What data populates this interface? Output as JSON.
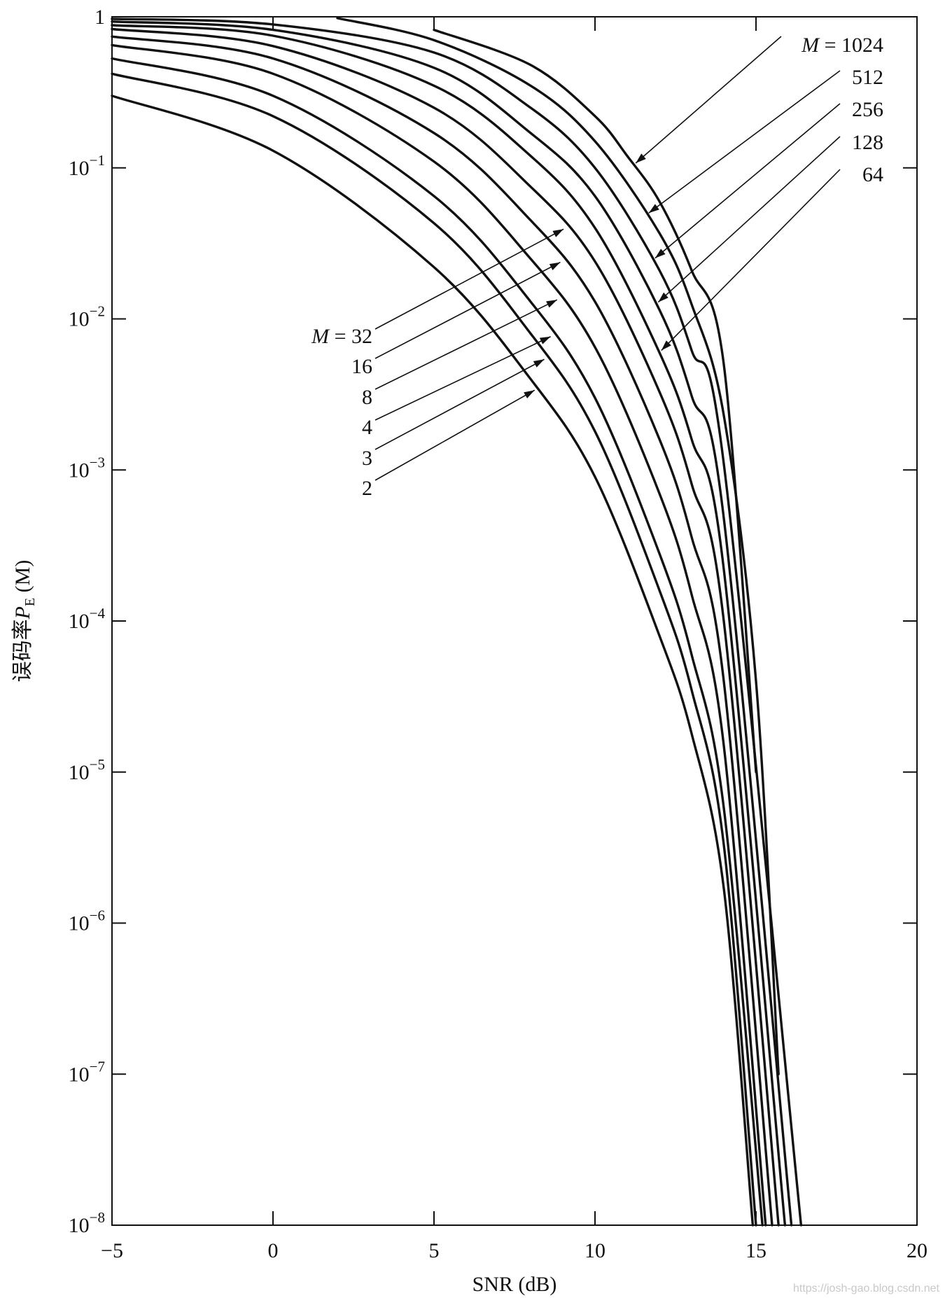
{
  "chart_data": {
    "type": "line",
    "xlabel": "SNR (dB)",
    "ylabel": "误码率P_E (M)",
    "ylabel_parts": {
      "prefix": "误码率",
      "symbol": "P",
      "subscript": "E",
      "suffix": " (M)"
    },
    "xlim": [
      -5,
      20
    ],
    "ylim": [
      1e-08,
      1
    ],
    "yscale": "log",
    "grid": false,
    "x_ticks": [
      -5,
      0,
      5,
      10,
      15,
      20
    ],
    "x_tick_labels": [
      "−5",
      "0",
      "5",
      "10",
      "15",
      "20"
    ],
    "y_ticks": [
      1,
      0.1,
      0.01,
      0.001,
      0.0001,
      1e-05,
      1e-06,
      1e-07,
      1e-08
    ],
    "y_tick_labels": [
      {
        "base": "1",
        "exp": ""
      },
      {
        "base": "10",
        "exp": "−1"
      },
      {
        "base": "10",
        "exp": "−2"
      },
      {
        "base": "10",
        "exp": "−3"
      },
      {
        "base": "10",
        "exp": "−4"
      },
      {
        "base": "10",
        "exp": "−5"
      },
      {
        "base": "10",
        "exp": "−6"
      },
      {
        "base": "10",
        "exp": "−7"
      },
      {
        "base": "10",
        "exp": "−8"
      }
    ],
    "series": [
      {
        "name": "2",
        "x": [
          -5,
          0,
          5,
          8,
          10,
          12,
          13,
          14,
          14.9
        ],
        "y": [
          0.3,
          0.13,
          0.022,
          0.004,
          0.0009,
          8e-05,
          1.8e-05,
          1.7e-06,
          1e-08
        ]
      },
      {
        "name": "3",
        "x": [
          -5,
          0,
          5,
          8,
          10,
          12,
          13,
          14,
          15.0
        ],
        "y": [
          0.42,
          0.22,
          0.043,
          0.008,
          0.0018,
          0.00016,
          3.5e-05,
          3.3e-06,
          1e-08
        ]
      },
      {
        "name": "4",
        "x": [
          -5,
          0,
          5,
          8,
          10,
          12,
          13,
          14,
          15.2
        ],
        "y": [
          0.53,
          0.3,
          0.065,
          0.013,
          0.003,
          0.00028,
          6e-05,
          5.8e-06,
          1e-08
        ]
      },
      {
        "name": "8",
        "x": [
          -5,
          0,
          5,
          8,
          10,
          12,
          13,
          14,
          15.3
        ],
        "y": [
          0.65,
          0.42,
          0.11,
          0.025,
          0.0065,
          0.0007,
          0.00015,
          1.5e-05,
          1e-08
        ]
      },
      {
        "name": "16",
        "x": [
          -5,
          0,
          5,
          8,
          10,
          12,
          13,
          14,
          15.5
        ],
        "y": [
          0.74,
          0.53,
          0.17,
          0.045,
          0.013,
          0.0016,
          0.00036,
          4e-05,
          1e-08
        ]
      },
      {
        "name": "32",
        "x": [
          -5,
          0,
          5,
          8,
          10,
          12,
          13,
          14,
          15.7
        ],
        "y": [
          0.83,
          0.64,
          0.25,
          0.075,
          0.024,
          0.0033,
          0.00081,
          0.0001,
          1e-08
        ]
      },
      {
        "name": "64",
        "x": [
          -5,
          0,
          5,
          8,
          10,
          12,
          13,
          14,
          15.9
        ],
        "y": [
          0.88,
          0.75,
          0.35,
          0.12,
          0.04,
          0.006,
          0.0016,
          0.00022,
          1e-08
        ]
      },
      {
        "name": "128",
        "x": [
          -5,
          0,
          5,
          8,
          10,
          12,
          13,
          14,
          16.1
        ],
        "y": [
          0.93,
          0.82,
          0.46,
          0.17,
          0.065,
          0.0115,
          0.0031,
          0.00048,
          1e-08
        ]
      },
      {
        "name": "256",
        "x": [
          -5,
          0,
          5,
          8,
          10,
          12,
          13,
          14,
          16.4
        ],
        "y": [
          0.97,
          0.89,
          0.58,
          0.25,
          0.1,
          0.021,
          0.0062,
          0.0011,
          1e-08
        ]
      },
      {
        "name": "512",
        "x": [
          2,
          5,
          8,
          10,
          12,
          13,
          14,
          15,
          15.7
        ],
        "y": [
          0.98,
          0.7,
          0.35,
          0.15,
          0.037,
          0.0125,
          0.0023,
          4e-05,
          1e-07
        ]
      },
      {
        "name": "1024",
        "x": [
          5,
          8,
          10,
          11,
          12,
          13,
          14,
          15
        ],
        "y": [
          0.82,
          0.48,
          0.22,
          0.12,
          0.06,
          0.021,
          0.005,
          1e-05
        ]
      }
    ],
    "labels": [
      {
        "series": "1024",
        "text": "M = 1024",
        "italic_prefix": "M"
      },
      {
        "series": "512",
        "text": "512"
      },
      {
        "series": "256",
        "text": "256"
      },
      {
        "series": "128",
        "text": "128"
      },
      {
        "series": "64",
        "text": "64"
      },
      {
        "series": "32",
        "text": "M = 32",
        "italic_prefix": "M"
      },
      {
        "series": "16",
        "text": "16"
      },
      {
        "series": "8",
        "text": "8"
      },
      {
        "series": "4",
        "text": "4"
      },
      {
        "series": "3",
        "text": "3"
      },
      {
        "series": "2",
        "text": "2"
      }
    ]
  },
  "watermark": "https://josh-gao.blog.csdn.net"
}
